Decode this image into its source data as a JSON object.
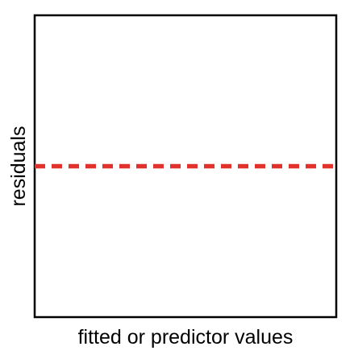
{
  "chart_data": {
    "type": "line",
    "title": "",
    "xlabel": "fitted or predictor values",
    "ylabel": "residuals",
    "xlim": [
      0,
      1
    ],
    "ylim": [
      -1,
      1
    ],
    "grid": false,
    "legend": "none",
    "xticks": [],
    "yticks": [],
    "series": [
      {
        "x": [
          0,
          1
        ],
        "values": [
          0,
          0
        ],
        "color": "#e0312b",
        "line_style": "dashed"
      }
    ]
  }
}
